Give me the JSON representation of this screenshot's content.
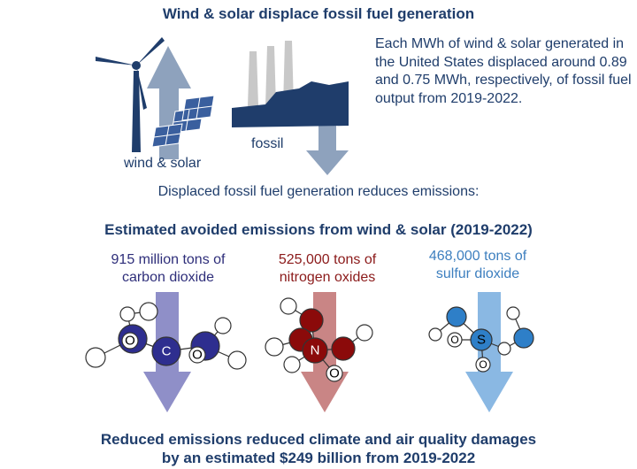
{
  "title": "Wind & solar displace fossil fuel generation",
  "description": "Each MWh of wind & solar generated in the United States displaced around 0.89 and 0.75 MWh, respectively, of fossil fuel output from 2019-2022.",
  "labels": {
    "wind_solar": "wind & solar",
    "fossil": "fossil"
  },
  "displaced_text": "Displaced fossil fuel generation reduces emissions:",
  "avoided_title": "Estimated avoided emissions from wind & solar (2019-2022)",
  "emissions": [
    {
      "line1": "915 million tons of",
      "line2": "carbon dioxide",
      "color": "#2e2e7a",
      "arrow_color": "#8f8fc8",
      "center_atom": "C",
      "side_atom": "O"
    },
    {
      "line1": "525,000 tons of",
      "line2": "nitrogen oxides",
      "color": "#8b1a1a",
      "arrow_color": "#c98585",
      "center_atom": "N",
      "side_atom": "O"
    },
    {
      "line1": "468,000 tons of",
      "line2": "sulfur dioxide",
      "color": "#3d7fbf",
      "arrow_color": "#8ab8e3",
      "center_atom": "S",
      "side_atom": "O"
    }
  ],
  "footer": {
    "line1": "Reduced emissions reduced climate and air quality damages",
    "line2": "by an estimated $249 billion from 2019-2022"
  },
  "colors": {
    "navy": "#1f3d6b",
    "arrow_gray": "#8ea2bd",
    "panel_blue": "#3a5f9e"
  },
  "icons": [
    "wind-turbine-icon",
    "solar-panel-icon",
    "power-plant-icon",
    "molecule-icon"
  ]
}
